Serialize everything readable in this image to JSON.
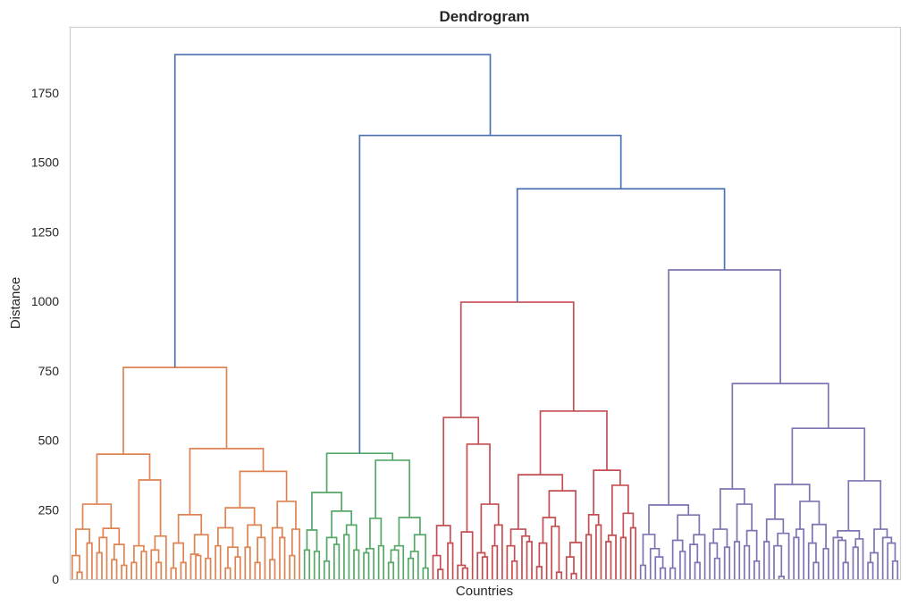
{
  "chart_data": {
    "type": "dendrogram",
    "title": "Dendrogram",
    "xlabel": "Countries",
    "ylabel": "Distance",
    "ylim": [
      0,
      1988
    ],
    "yticks": [
      0,
      250,
      500,
      750,
      1000,
      1250,
      1500,
      1750
    ],
    "grid": false,
    "link_color_above_threshold": "#4c72b0",
    "clusters": [
      {
        "color": "#dd8452",
        "tree": [
          762,
          [
            450,
            [
              270,
              [
                180,
                [
                  85,
                  0,
                  [
                    25,
                    0,
                    0
                  ]
                ],
                [
                  130,
                  0,
                  0
                ]
              ],
              [
                183,
                [
                  150,
                  [
                    95,
                    0,
                    0
                  ],
                  0
                ],
                [
                  125,
                  [
                    70,
                    0,
                    0
                  ],
                  [
                    50,
                    0,
                    0
                  ]
                ]
              ]
            ],
            [
              357,
              [
                120,
                [
                  60,
                  0,
                  0
                ],
                [
                  100,
                  0,
                  0
                ]
              ],
              [
                155,
                [
                  105,
                  0,
                  [
                    60,
                    0,
                    0
                  ]
                ],
                0
              ]
            ]
          ],
          [
            470,
            [
              232,
              [
                130,
                [
                  40,
                  0,
                  0
                ],
                [
                  60,
                  0,
                  0
                ]
              ],
              [
                160,
                [
                  90,
                  0,
                  [
                    85,
                    0,
                    0
                  ]
                ],
                [
                  75,
                  0,
                  0
                ]
              ]
            ],
            [
              388,
              [
                257,
                [
                  185,
                  [
                    120,
                    0,
                    0
                  ],
                  [
                    115,
                    [
                      40,
                      0,
                      0
                    ],
                    [
                      80,
                      0,
                      0
                    ]
                  ]
                ],
                [
                  195,
                  [
                    115,
                    0,
                    0
                  ],
                  [
                    150,
                    [
                      60,
                      0,
                      0
                    ],
                    0
                  ]
                ]
              ],
              [
                280,
                [
                  185,
                  [
                    70,
                    0,
                    0
                  ],
                  [
                    150,
                    0,
                    0
                  ]
                ],
                [
                  180,
                  [
                    85,
                    0,
                    0
                  ],
                  0
                ]
              ]
            ]
          ]
        ]
      },
      {
        "color": "#55a868",
        "tree": [
          453,
          [
            312,
            [
              177,
              [
                105,
                0,
                0
              ],
              [
                100,
                0,
                0
              ]
            ],
            [
              245,
              [
                150,
                [
                  65,
                  0,
                  0
                ],
                [
                  125,
                  0,
                  0
                ]
              ],
              [
                195,
                [
                  160,
                  0,
                  0
                ],
                [
                  105,
                  0,
                  0
                ]
              ]
            ]
          ],
          [
            428,
            [
              219,
              [
                110,
                [
                  95,
                  0,
                  0
                ],
                0
              ],
              [
                120,
                0,
                0
              ]
            ],
            [
              222,
              [
                120,
                [
                  105,
                  [
                    60,
                    0,
                    0
                  ],
                  0
                ],
                0
              ],
              [
                160,
                [
                  100,
                  [
                    75,
                    0,
                    0
                  ],
                  0
                ],
                [
                  40,
                  0,
                  0
                ]
              ]
            ]
          ]
        ]
      },
      {
        "color": "#c44e52",
        "tree": [
          997,
          [
            582,
            [
              193,
              [
                85,
                0,
                [
                  35,
                  0,
                  0
                ]
              ],
              [
                130,
                0,
                0
              ]
            ],
            [
              486,
              [
                170,
                [
                  50,
                  0,
                  [
                    40,
                    0,
                    0
                  ]
                ],
                0
              ],
              [
                270,
                [
                  95,
                  0,
                  [
                    80,
                    0,
                    0
                  ]
                ],
                [
                  195,
                  [
                    120,
                    0,
                    0
                  ],
                  0
                ]
              ]
            ]
          ],
          [
            605,
            [
              376,
              [
                180,
                [
                  120,
                  0,
                  [
                    65,
                    0,
                    0
                  ]
                ],
                [
                  155,
                  0,
                  [
                    135,
                    0,
                    0
                  ]
                ]
              ],
              [
                318,
                [
                  222,
                  [
                    130,
                    [
                      45,
                      0,
                      0
                    ],
                    0
                  ],
                  [
                    190,
                    0,
                    [
                      25,
                      0,
                      0
                    ]
                  ]
                ],
                [
                  132,
                  [
                    80,
                    0,
                    [
                      20,
                      0,
                      0
                    ]
                  ],
                  0
                ]
              ]
            ],
            [
              392,
              [
                232,
                [
                  160,
                  0,
                  0
                ],
                [
                  195,
                  0,
                  0
                ]
              ],
              [
                338,
                [
                  158,
                  [
                    135,
                    0,
                    0
                  ],
                  0
                ],
                [
                  237,
                  [
                    150,
                    0,
                    0
                  ],
                  [
                    185,
                    0,
                    0
                  ]
                ]
              ]
            ]
          ]
        ]
      },
      {
        "color": "#8172b3",
        "tree": [
          1113,
          [
            267,
            [
              161,
              [
                50,
                0,
                0
              ],
              [
                110,
                0,
                [
                  80,
                  0,
                  [
                    40,
                    0,
                    0
                  ]
                ]
              ]
            ],
            [
              231,
              [
                140,
                [
                  40,
                  0,
                  0
                ],
                [
                  100,
                  0,
                  0
                ]
              ],
              [
                160,
                [
                  125,
                  0,
                  [
                    60,
                    0,
                    0
                  ]
                ],
                0
              ]
            ]
          ],
          [
            704,
            [
              325,
              [
                180,
                [
                  130,
                  0,
                  [
                    75,
                    0,
                    0
                  ]
                ],
                [
                  115,
                  0,
                  0
                ]
              ],
              [
                270,
                [
                  135,
                  0,
                  0
                ],
                [
                  175,
                  [
                    120,
                    0,
                    0
                  ],
                  [
                    65,
                    0,
                    0
                  ]
                ]
              ]
            ],
            [
              543,
              [
                341,
                [
                  216,
                  [
                    135,
                    0,
                    0
                  ],
                  [
                    165,
                    [
                      120,
                      0,
                      [
                        10,
                        0,
                        0
                      ]
                    ],
                    0
                  ]
                ],
                [
                  280,
                  [
                    180,
                    [
                      150,
                      0,
                      0
                    ],
                    0
                  ],
                  [
                    197,
                    [
                      130,
                      0,
                      [
                        60,
                        0,
                        0
                      ]
                    ],
                    [
                      110,
                      0,
                      0
                    ]
                  ]
                ]
              ],
              [
                354,
                [
                  174,
                  [
                    150,
                    0,
                    [
                      140,
                      0,
                      [
                        60,
                        0,
                        0
                      ]
                    ]
                  ],
                  [
                    145,
                    [
                      115,
                      0,
                      0
                    ],
                    0
                  ]
                ],
                [
                  180,
                  [
                    95,
                    [
                      60,
                      0,
                      0
                    ],
                    0
                  ],
                  [
                    150,
                    0,
                    [
                      130,
                      0,
                      [
                        65,
                        0,
                        0
                      ]
                    ]
                  ]
                ]
              ]
            ]
          ]
        ]
      }
    ],
    "top_tree": [
      1888,
      "C0",
      [
        1597,
        "C1",
        [
          1405,
          "C2",
          "C3"
        ]
      ]
    ]
  }
}
